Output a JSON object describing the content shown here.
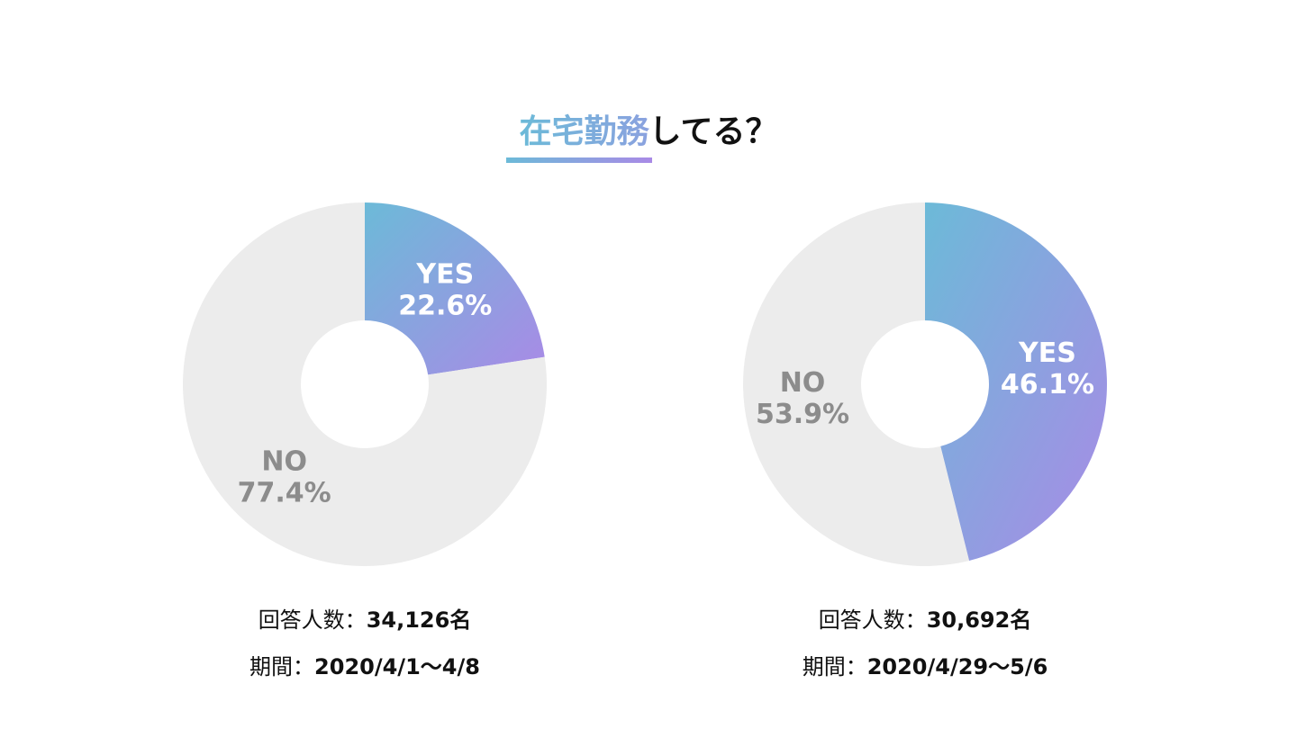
{
  "title": {
    "highlight": "在宅勤務",
    "rest": "してる？",
    "highlight_colors": [
      "#6cbad8",
      "#a98ae6"
    ],
    "rest_color": "#111111"
  },
  "chart_data": [
    {
      "type": "pie",
      "categories": [
        "YES",
        "NO"
      ],
      "values": [
        22.6,
        77.4
      ],
      "value_labels": [
        "22.6%",
        "77.4%"
      ],
      "colors": [
        "#6cbad8",
        "#ececec"
      ],
      "gradient_to": "#a98ae6",
      "label_colors": [
        "#ffffff",
        "#8c8c8c"
      ],
      "respondents_label": "回答人数：",
      "respondents": "34,126名",
      "period_label": "期間：",
      "period": "2020/4/1～4/8"
    },
    {
      "type": "pie",
      "categories": [
        "YES",
        "NO"
      ],
      "values": [
        46.1,
        53.9
      ],
      "value_labels": [
        "46.1%",
        "53.9%"
      ],
      "colors": [
        "#6cbad8",
        "#ececec"
      ],
      "gradient_to": "#a98ae6",
      "label_colors": [
        "#ffffff",
        "#8c8c8c"
      ],
      "respondents_label": "回答人数：",
      "respondents": "30,692名",
      "period_label": "期間：",
      "period": "2020/4/29～5/6"
    }
  ]
}
